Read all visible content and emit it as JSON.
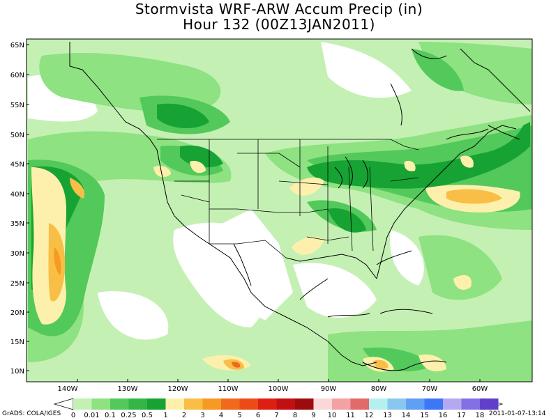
{
  "title": {
    "line1": "Stormvista WRF-ARW Accum Precip (in)",
    "line2": "Hour 132 (00Z13JAN2011)"
  },
  "colors": {
    "ocean_land_none": "#ffffff",
    "light_green": "#c4f0b4",
    "mid_green": "#8ee281",
    "green": "#52c95a",
    "dark_green": "#17a334",
    "light_yellow": "#fdf0ac",
    "orange_yellow": "#f8be45",
    "orange": "#f59a22",
    "dark_orange": "#f06a1c"
  },
  "map": {
    "lat_labels": [
      "65N",
      "60N",
      "55N",
      "50N",
      "45N",
      "40N",
      "35N",
      "30N",
      "25N",
      "20N",
      "15N",
      "10N"
    ],
    "lon_labels": [
      "140W",
      "130W",
      "120W",
      "110W",
      "100W",
      "90W",
      "80W",
      "70W",
      "60W"
    ]
  },
  "legend": {
    "labels": [
      "0",
      "0.01",
      "0.1",
      "0.25",
      "0.5",
      "1",
      "2",
      "3",
      "4",
      "5",
      "6",
      "7",
      "8",
      "9",
      "10",
      "11",
      "12",
      "13",
      "14",
      "15",
      "16",
      "17",
      "18"
    ],
    "colors": [
      "#c4f0b4",
      "#8ee281",
      "#52c95a",
      "#33b646",
      "#17a334",
      "#fdf0ac",
      "#f8be45",
      "#f59a22",
      "#f06a1c",
      "#ec4a17",
      "#dd1f13",
      "#c10f12",
      "#9e0b0f",
      "#fad8d8",
      "#f2a2a2",
      "#e26a6a",
      "#b4f0f0",
      "#88c8f0",
      "#5fa0f5",
      "#3c78f5",
      "#b4a8f0",
      "#8270e4",
      "#6040c8"
    ]
  },
  "credit_left": "GrADS: COLA/IGES",
  "credit_right": "2011-01-07-13:14"
}
